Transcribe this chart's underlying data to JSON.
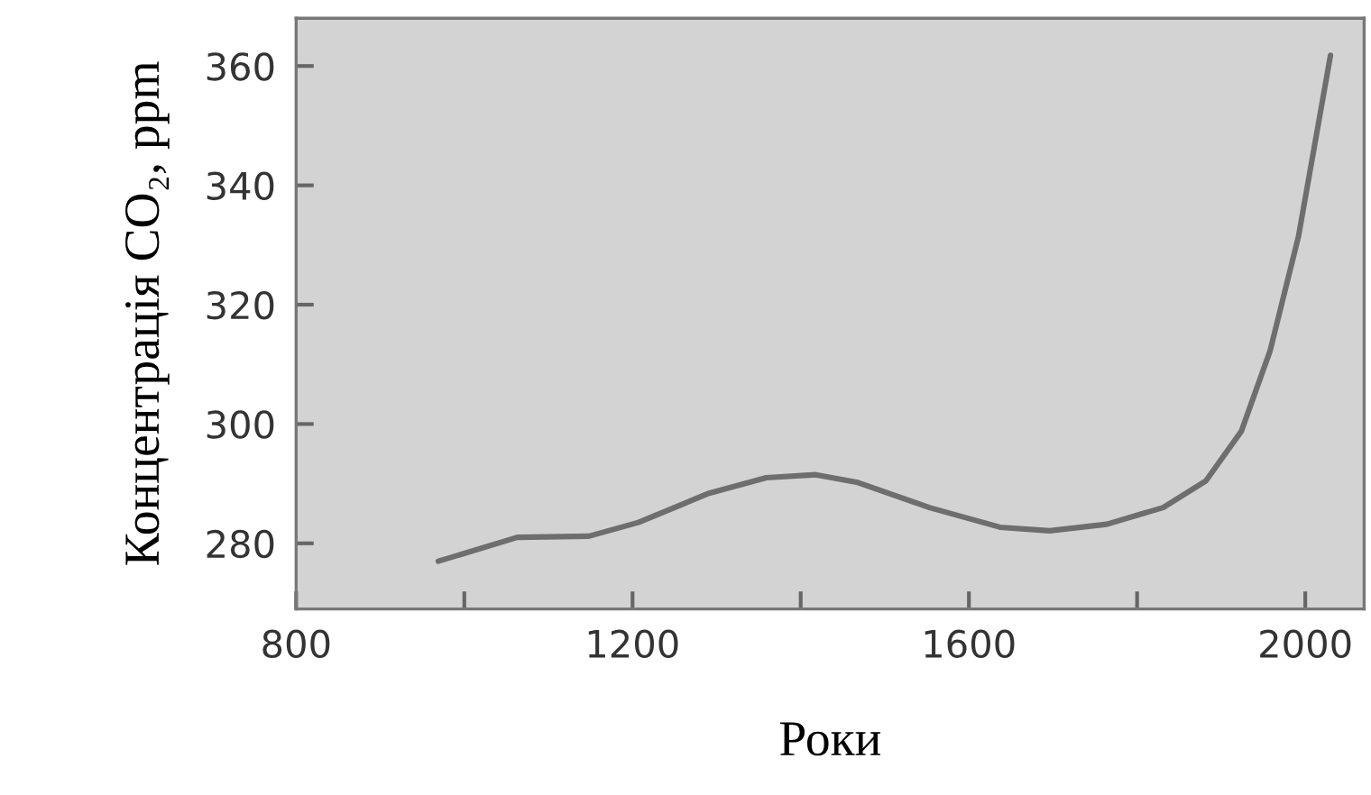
{
  "chart_data": {
    "type": "line",
    "xlabel": "Роки",
    "ylabel": "Концентрація CO₂, ppm",
    "x": [
      969,
      1063,
      1148,
      1207,
      1291,
      1359,
      1418,
      1468,
      1553,
      1637,
      1696,
      1764,
      1831,
      1882,
      1924,
      1958,
      1992,
      2030
    ],
    "series": [
      {
        "color": "#6e6e6e",
        "values": [
          277,
          281,
          281.2,
          283.5,
          288.4,
          291,
          291.5,
          290.2,
          286,
          282.7,
          282.1,
          283.2,
          286,
          290.5,
          298.8,
          312.2,
          331.5,
          361.8
        ]
      }
    ],
    "xlim": [
      800,
      2070
    ],
    "ylim": [
      269,
      368
    ],
    "xticks": [
      800,
      {
        "value": 1000,
        "label": null
      },
      1200,
      {
        "value": 1400,
        "label": null
      },
      1600,
      {
        "value": 1800,
        "label": null
      },
      2000
    ],
    "yticks": [
      280,
      300,
      320,
      340,
      360
    ],
    "grid": false,
    "legend": false,
    "marker": "none",
    "line_style": "solid"
  }
}
